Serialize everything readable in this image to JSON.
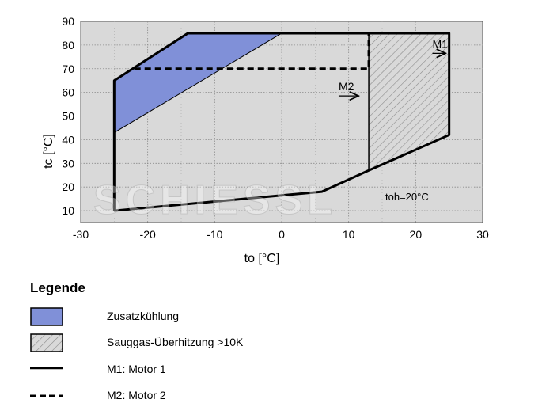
{
  "chart_data": {
    "type": "area",
    "title": "",
    "xlabel": "to [°C]",
    "ylabel": "tc [°C]",
    "xlim": [
      -30,
      30
    ],
    "ylim": [
      5,
      90
    ],
    "xticks": [
      -30,
      -20,
      -10,
      0,
      10,
      20,
      30
    ],
    "yticks": [
      10,
      20,
      30,
      40,
      50,
      60,
      70,
      80,
      90
    ],
    "grid": true,
    "plot_background": "#d9d9d9",
    "annotation": "toh=20°C",
    "series": [
      {
        "key": "m1",
        "style": "solid",
        "points": [
          [
            -25,
            10
          ],
          [
            6,
            18
          ],
          [
            13,
            27
          ],
          [
            25,
            42
          ],
          [
            25,
            85
          ],
          [
            -14,
            85
          ],
          [
            -25,
            65
          ],
          [
            -25,
            10
          ]
        ]
      },
      {
        "key": "m2",
        "style": "dashed",
        "points": [
          [
            -22,
            70
          ],
          [
            13,
            70
          ],
          [
            13,
            85
          ]
        ]
      },
      {
        "key": "zusatzkuehlung",
        "style": "fill",
        "color": "#8090d8",
        "points": [
          [
            -25,
            43
          ],
          [
            -25,
            65
          ],
          [
            -14,
            85
          ],
          [
            0,
            85
          ]
        ]
      },
      {
        "key": "sauggas",
        "style": "hatch",
        "color": "#d9d9d9",
        "points": [
          [
            13,
            27
          ],
          [
            25,
            42
          ],
          [
            25,
            85
          ],
          [
            13,
            85
          ]
        ]
      }
    ],
    "arrows": [
      {
        "label": "M1",
        "at": [
          22.5,
          76.5
        ],
        "to": [
          24.5,
          76.5
        ]
      },
      {
        "label": "M2",
        "at": [
          8.5,
          58.5
        ],
        "to": [
          11.5,
          58.5
        ]
      }
    ]
  },
  "legend": {
    "title": "Legende",
    "items": [
      {
        "swatch": "blue-fill",
        "label": "Zusatzkühlung"
      },
      {
        "swatch": "hatch",
        "label": "Sauggas-Überhitzung >10K"
      },
      {
        "swatch": "solid-line",
        "label": "M1: Motor 1"
      },
      {
        "swatch": "dashed-line",
        "label": "M2: Motor 2"
      }
    ]
  },
  "watermark": "SCHIESSL"
}
